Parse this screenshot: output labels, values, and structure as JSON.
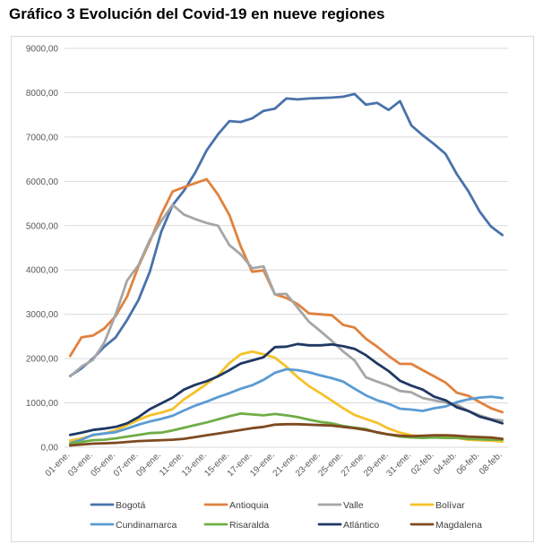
{
  "chart_data": {
    "type": "line",
    "title": "Gráfico 3 Evolución del Covid-19 en nueve regiones",
    "xlabel": "",
    "ylabel": "",
    "ylim": [
      0,
      9000
    ],
    "yticks": [
      "0,00",
      "1000,00",
      "2000,00",
      "3000,00",
      "4000,00",
      "5000,00",
      "6000,00",
      "7000,00",
      "8000,00",
      "9000,00"
    ],
    "x": [
      "01-ene.",
      "02-ene.",
      "03-ene.",
      "04-ene.",
      "05-ene.",
      "06-ene.",
      "07-ene.",
      "08-ene.",
      "09-ene.",
      "10-ene.",
      "11-ene.",
      "12-ene.",
      "13-ene.",
      "14-ene.",
      "15-ene.",
      "16-ene.",
      "17-ene.",
      "18-ene.",
      "19-ene.",
      "20-ene.",
      "21-ene.",
      "22-ene.",
      "23-ene.",
      "24-ene.",
      "25-ene.",
      "26-ene.",
      "27-ene.",
      "28-ene.",
      "29-ene.",
      "30-ene.",
      "31-ene.",
      "01-feb.",
      "02-feb.",
      "03-feb.",
      "04-feb.",
      "05-feb.",
      "06-feb.",
      "07-feb.",
      "08-feb."
    ],
    "xtick_labels": [
      "01-ene.",
      "03-ene.",
      "05-ene.",
      "07-ene.",
      "09-ene.",
      "11-ene.",
      "13-ene.",
      "15-ene.",
      "17-ene.",
      "19-ene.",
      "21-ene.",
      "23-ene.",
      "25-ene.",
      "27-ene.",
      "29-ene.",
      "31-ene.",
      "02-feb.",
      "04-feb.",
      "06-feb.",
      "08-feb."
    ],
    "grid": true,
    "legend_position": "bottom",
    "series": [
      {
        "name": "Bogotá",
        "color": "#4a72aa",
        "values": [
          1610,
          1780,
          2000,
          2270,
          2480,
          2870,
          3320,
          3960,
          4860,
          5460,
          5790,
          6200,
          6700,
          7060,
          7360,
          7340,
          7420,
          7590,
          7640,
          7870,
          7850,
          7870,
          7880,
          7890,
          7910,
          7970,
          7730,
          7770,
          7610,
          7810,
          7260,
          7040,
          6840,
          6620,
          6160,
          5780,
          5320,
          4980,
          4790
        ]
      },
      {
        "name": "Antioquia",
        "color": "#e0823e",
        "values": [
          2060,
          2480,
          2520,
          2680,
          2960,
          3400,
          4080,
          4640,
          5250,
          5770,
          5870,
          5960,
          6050,
          5700,
          5240,
          4530,
          3960,
          3990,
          3450,
          3370,
          3230,
          3020,
          3000,
          2980,
          2760,
          2700,
          2450,
          2270,
          2060,
          1880,
          1880,
          1740,
          1600,
          1460,
          1230,
          1160,
          1020,
          880,
          790
        ]
      },
      {
        "name": "Valle",
        "color": "#a6a6a6",
        "values": [
          1600,
          1820,
          1970,
          2360,
          3000,
          3760,
          4110,
          4680,
          5100,
          5470,
          5250,
          5150,
          5060,
          5000,
          4560,
          4350,
          4040,
          4080,
          3450,
          3460,
          3150,
          2830,
          2620,
          2400,
          2160,
          1960,
          1580,
          1480,
          1390,
          1270,
          1240,
          1110,
          1060,
          1010,
          960,
          820,
          720,
          640,
          600
        ]
      },
      {
        "name": "Bolívar",
        "color": "#f5c22a",
        "values": [
          150,
          200,
          270,
          310,
          380,
          500,
          620,
          720,
          780,
          860,
          1080,
          1250,
          1430,
          1620,
          1900,
          2100,
          2160,
          2100,
          2020,
          1820,
          1580,
          1380,
          1220,
          1050,
          880,
          730,
          640,
          550,
          420,
          330,
          270,
          240,
          230,
          220,
          210,
          170,
          160,
          150,
          130
        ]
      },
      {
        "name": "Cundinamarca",
        "color": "#5b9bd5",
        "values": [
          90,
          170,
          280,
          310,
          340,
          420,
          510,
          580,
          640,
          710,
          830,
          940,
          1030,
          1130,
          1220,
          1320,
          1400,
          1520,
          1680,
          1760,
          1740,
          1690,
          1620,
          1560,
          1480,
          1320,
          1170,
          1060,
          980,
          870,
          850,
          820,
          880,
          920,
          1020,
          1080,
          1120,
          1140,
          1110
        ]
      },
      {
        "name": "Risaralda",
        "color": "#70ad47",
        "values": [
          90,
          120,
          160,
          170,
          200,
          240,
          280,
          320,
          330,
          380,
          440,
          500,
          560,
          630,
          700,
          760,
          740,
          720,
          750,
          720,
          680,
          620,
          570,
          540,
          480,
          440,
          410,
          330,
          290,
          240,
          220,
          210,
          220,
          210,
          210,
          190,
          180,
          170,
          170
        ]
      },
      {
        "name": "Atlántico",
        "color": "#1f3864",
        "values": [
          280,
          330,
          390,
          420,
          460,
          540,
          680,
          860,
          990,
          1120,
          1300,
          1410,
          1490,
          1600,
          1740,
          1890,
          1960,
          2030,
          2260,
          2270,
          2330,
          2300,
          2300,
          2320,
          2280,
          2220,
          2080,
          1890,
          1720,
          1500,
          1390,
          1300,
          1140,
          1060,
          900,
          820,
          690,
          620,
          540
        ]
      },
      {
        "name": "Magdalena",
        "color": "#7f4a20",
        "values": [
          40,
          60,
          80,
          90,
          100,
          120,
          140,
          150,
          160,
          170,
          190,
          230,
          270,
          310,
          350,
          390,
          430,
          460,
          510,
          520,
          520,
          510,
          500,
          490,
          460,
          430,
          390,
          340,
          290,
          260,
          250,
          260,
          270,
          270,
          260,
          240,
          230,
          220,
          190
        ]
      }
    ]
  }
}
